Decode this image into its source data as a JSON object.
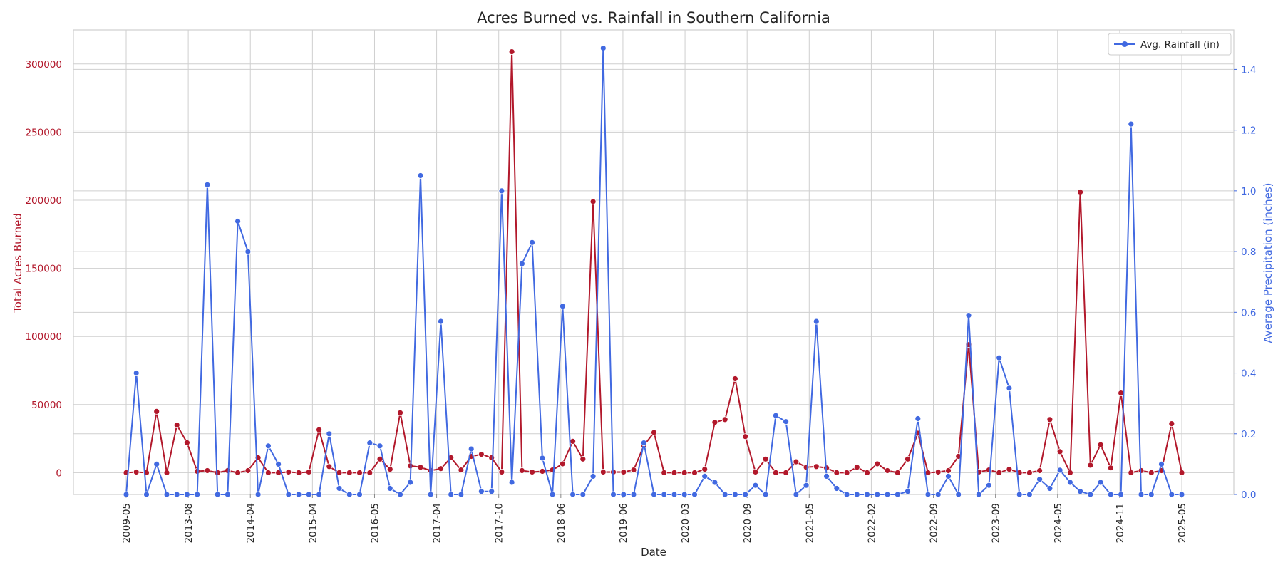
{
  "chart_data": {
    "type": "line",
    "title": "Acres Burned vs. Rainfall in Southern California",
    "xlabel": "Date",
    "ylabel_left": "Total Acres Burned",
    "ylabel_right": "Average Precipitation (inches)",
    "left_color": "#b2182b",
    "right_color": "#4169e1",
    "left_yticks": [
      "0",
      "50000",
      "100000",
      "150000",
      "200000",
      "250000",
      "300000"
    ],
    "right_yticks": [
      "0.0",
      "0.2",
      "0.4",
      "0.6",
      "0.8",
      "1.0",
      "1.2",
      "1.4"
    ],
    "left_ylim": [
      -16000,
      325000
    ],
    "right_ylim": [
      0,
      1.53
    ],
    "xticks": [
      "2009-05",
      "2013-08",
      "2014-04",
      "2015-04",
      "2016-05",
      "2017-04",
      "2017-10",
      "2018-06",
      "2019-06",
      "2020-03",
      "2020-09",
      "2021-05",
      "2022-02",
      "2022-09",
      "2023-09",
      "2024-05",
      "2024-11",
      "2025-05"
    ],
    "grid": true,
    "legend": {
      "placement": "top-right",
      "entries": [
        "Avg. Rainfall (in)"
      ]
    },
    "series": [
      {
        "axis": "left",
        "values": [
          0,
          500,
          0,
          45000,
          0,
          35000,
          22000,
          1000,
          1500,
          0,
          1500,
          0,
          1500,
          11000,
          0,
          0,
          500,
          0,
          500,
          31500,
          4500,
          0,
          0,
          0,
          0,
          10000,
          2500,
          44000,
          5000,
          4000,
          1500,
          3000,
          11000,
          2000,
          12000,
          13500,
          11000,
          500,
          309000,
          1500,
          500,
          1000,
          2000,
          6500,
          23000,
          10000,
          199000,
          500,
          500,
          500,
          2000,
          20000,
          29500,
          0,
          0,
          0,
          0,
          2500,
          37000,
          39000,
          69000,
          26500,
          500,
          10000,
          0,
          0,
          8000,
          4000,
          4500,
          3500,
          0,
          0,
          4000,
          0,
          6500,
          1500,
          0,
          10000,
          29000,
          0,
          500,
          1500,
          12000,
          94000,
          500,
          2000,
          0,
          2500,
          0,
          0,
          1500,
          39000,
          15500,
          0,
          206000,
          5500,
          20500,
          3500,
          58500,
          0,
          1500,
          0,
          1500,
          36000,
          0
        ]
      },
      {
        "axis": "right",
        "values": [
          0.0,
          0.4,
          0.0,
          0.1,
          0.0,
          0.0,
          0.0,
          0.0,
          1.02,
          0.0,
          0.0,
          0.9,
          0.8,
          0.0,
          0.16,
          0.1,
          0.0,
          0.0,
          0.0,
          0.0,
          0.2,
          0.02,
          0.0,
          0.0,
          0.17,
          0.16,
          0.02,
          0.0,
          0.04,
          1.05,
          0.0,
          0.57,
          0.0,
          0.0,
          0.15,
          0.01,
          0.01,
          1.0,
          0.04,
          0.76,
          0.83,
          0.12,
          0.0,
          0.62,
          0.0,
          0.0,
          0.06,
          1.47,
          0.0,
          0.0,
          0.0,
          0.17,
          0.0,
          0.0,
          0.0,
          0.0,
          0.0,
          0.06,
          0.04,
          0.0,
          0.0,
          0.0,
          0.03,
          0.0,
          0.26,
          0.24,
          0.0,
          0.03,
          0.57,
          0.06,
          0.02,
          0.0,
          0.0,
          0.0,
          0.0,
          0.0,
          0.0,
          0.01,
          0.25,
          0.0,
          0.0,
          0.06,
          0.0,
          0.59,
          0.0,
          0.03,
          0.45,
          0.35,
          0.0,
          0.0,
          0.05,
          0.02,
          0.08,
          0.04,
          0.01,
          0.0,
          0.04,
          0.0,
          0.0,
          1.22,
          0.0,
          0.0,
          0.1,
          0.0,
          0.0
        ]
      }
    ]
  }
}
